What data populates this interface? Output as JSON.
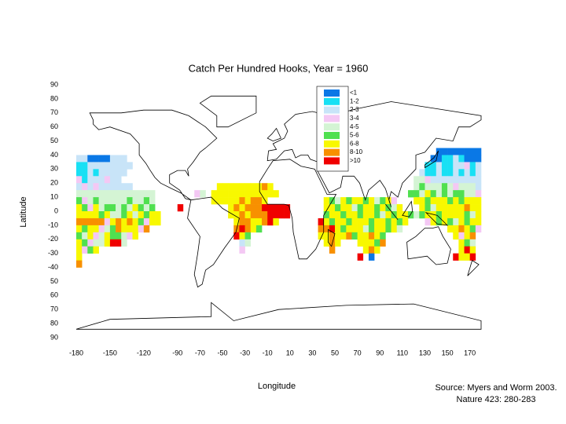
{
  "chart_data": {
    "type": "map",
    "title": "Catch Per Hundred Hooks, Year = 1960",
    "xlabel": "Longitude",
    "ylabel": "Latitude",
    "source": [
      "Source: Myers and Worm 2003.",
      "Nature 423: 280-283"
    ],
    "xlim": [
      -180,
      180
    ],
    "ylim": [
      -90,
      90
    ],
    "xticks": [
      -180,
      -150,
      -120,
      -90,
      -70,
      -50,
      -30,
      -10,
      10,
      30,
      50,
      70,
      90,
      110,
      130,
      150,
      170
    ],
    "yticks": [
      90,
      80,
      70,
      60,
      50,
      40,
      30,
      20,
      10,
      0,
      -10,
      -20,
      -30,
      -40,
      {
        "value": -50,
        "label": "50"
      },
      {
        "value": -60,
        "label": "60"
      },
      {
        "value": -70,
        "label": "70"
      },
      {
        "value": -80,
        "label": "80"
      },
      {
        "value": -90,
        "label": "90"
      }
    ],
    "legend": {
      "labels": [
        "<1",
        "1-2",
        "2-3",
        "3-4",
        "4-5",
        "5-6",
        "6-8",
        "8-10",
        ">10"
      ],
      "colors": [
        "#0a78e6",
        "#18e0f4",
        "#c8e4f8",
        "#f4c8f4",
        "#d4f4d4",
        "#50e050",
        "#f8f800",
        "#f89000",
        "#f00000"
      ]
    },
    "cell_size": 5,
    "cells": [
      {
        "lat": 37.5,
        "lon": -180,
        "classes": [
          2,
          2,
          0,
          0,
          0,
          0,
          2,
          2,
          2
        ]
      },
      {
        "lat": 32.5,
        "lon": -180,
        "classes": [
          1,
          1,
          2,
          2,
          2,
          2,
          2,
          2,
          2,
          2
        ]
      },
      {
        "lat": 27.5,
        "lon": -180,
        "classes": [
          1,
          1,
          2,
          1,
          2,
          2,
          2,
          2,
          2
        ]
      },
      {
        "lat": 22.5,
        "lon": -180,
        "classes": [
          3,
          1,
          2,
          2,
          2,
          3,
          2,
          2
        ]
      },
      {
        "lat": 17.5,
        "lon": -180,
        "classes": [
          2,
          3,
          2,
          3,
          2,
          2,
          2,
          2,
          2,
          2
        ]
      },
      {
        "lat": 12.5,
        "lon": -180,
        "classes": [
          4,
          4,
          4,
          4,
          4,
          4,
          4,
          4,
          4,
          4,
          4,
          4,
          4,
          4
        ]
      },
      {
        "lat": 7.5,
        "lon": -180,
        "classes": [
          5,
          3,
          4,
          5,
          4,
          4,
          4,
          4,
          4,
          5,
          4,
          4,
          5,
          4
        ]
      },
      {
        "lat": 2.5,
        "lon": -180,
        "classes": [
          6,
          5,
          3,
          6,
          4,
          5,
          5,
          4,
          5,
          4,
          6,
          5,
          4,
          5
        ]
      },
      {
        "lat": -2.5,
        "lon": -180,
        "classes": [
          6,
          6,
          6,
          6,
          5,
          6,
          4,
          4,
          5,
          6,
          4,
          6,
          5,
          6,
          6
        ]
      },
      {
        "lat": -7.5,
        "lon": -180,
        "classes": [
          7,
          7,
          7,
          7,
          7,
          3,
          6,
          7,
          6,
          7,
          6,
          5,
          3,
          6,
          6
        ]
      },
      {
        "lat": -12.5,
        "lon": -180,
        "classes": [
          6,
          5,
          6,
          6,
          3,
          4,
          5,
          7,
          6,
          6,
          6,
          3,
          7
        ]
      },
      {
        "lat": -17.5,
        "lon": -180,
        "classes": [
          5,
          4,
          6,
          3,
          4,
          6,
          5,
          5,
          4,
          3,
          6
        ]
      },
      {
        "lat": -22.5,
        "lon": -180,
        "classes": [
          6,
          5,
          3,
          4,
          4,
          6,
          8,
          8,
          4
        ]
      },
      {
        "lat": -27.5,
        "lon": -180,
        "classes": [
          6,
          3,
          5,
          6
        ]
      },
      {
        "lat": -32.5,
        "lon": -180,
        "classes": [
          6
        ]
      },
      {
        "lat": -37.5,
        "lon": -180,
        "classes": [
          7
        ]
      },
      {
        "lat": 17.5,
        "lon": -55,
        "classes": [
          6,
          6,
          6,
          6,
          6,
          6,
          6,
          6,
          7,
          6
        ]
      },
      {
        "lat": 12.5,
        "lon": -75,
        "classes": [
          3,
          4,
          null,
          6,
          6,
          6,
          6,
          6,
          6,
          6,
          6,
          6,
          6,
          6,
          6
        ]
      },
      {
        "lat": 7.5,
        "lon": -60,
        "classes": [
          6,
          6,
          6,
          6,
          6,
          7,
          6,
          7,
          7,
          6
        ]
      },
      {
        "lat": 2.5,
        "lon": -90,
        "classes": [
          8,
          null,
          null,
          null,
          null,
          null,
          null,
          null,
          null,
          6,
          7,
          6,
          7,
          7,
          7,
          8,
          8,
          8,
          8,
          8
        ]
      },
      {
        "lat": -2.5,
        "lon": -45,
        "classes": [
          6,
          6,
          7,
          6,
          7,
          7,
          7,
          8,
          8,
          8,
          8
        ]
      },
      {
        "lat": -7.5,
        "lon": -40,
        "classes": [
          6,
          7,
          7,
          6,
          6,
          7,
          8,
          6
        ]
      },
      {
        "lat": -12.5,
        "lon": -40,
        "classes": [
          7,
          8,
          7,
          6,
          5
        ]
      },
      {
        "lat": -17.5,
        "lon": -40,
        "classes": [
          8,
          6,
          5
        ]
      },
      {
        "lat": -22.5,
        "lon": -35,
        "classes": [
          2,
          4
        ]
      },
      {
        "lat": -27.5,
        "lon": -35,
        "classes": [
          3
        ]
      },
      {
        "lat": 7.5,
        "lon": 40,
        "classes": [
          6,
          5,
          4,
          6,
          5,
          6,
          6,
          5,
          6,
          4,
          5,
          6,
          3
        ]
      },
      {
        "lat": 2.5,
        "lon": 40,
        "classes": [
          6,
          6,
          5,
          6,
          6,
          4,
          5,
          6,
          6,
          5,
          6,
          5,
          4,
          6
        ]
      },
      {
        "lat": -2.5,
        "lon": 40,
        "classes": [
          5,
          6,
          6,
          5,
          6,
          6,
          5,
          6,
          6,
          5,
          4,
          6,
          5,
          6,
          6,
          5,
          4
        ]
      },
      {
        "lat": -7.5,
        "lon": 35,
        "classes": [
          8,
          6,
          5,
          6,
          6,
          5,
          6,
          6,
          6,
          5,
          6,
          6,
          5,
          6,
          5,
          6
        ]
      },
      {
        "lat": -12.5,
        "lon": 35,
        "classes": [
          7,
          7,
          8,
          6,
          5,
          6,
          6,
          6,
          4,
          5,
          6,
          6,
          5,
          6,
          4
        ]
      },
      {
        "lat": -17.5,
        "lon": 35,
        "classes": [
          6,
          6,
          7,
          6,
          6,
          7,
          5,
          6,
          6,
          7,
          6,
          5
        ]
      },
      {
        "lat": -22.5,
        "lon": 40,
        "classes": [
          6,
          7,
          6,
          null,
          null,
          null,
          6,
          6,
          6,
          5,
          7
        ]
      },
      {
        "lat": -27.5,
        "lon": 45,
        "classes": [
          7,
          null,
          null,
          null,
          null,
          null,
          6,
          7,
          6
        ]
      },
      {
        "lat": -32.5,
        "lon": 70,
        "classes": [
          8,
          null,
          0
        ]
      },
      {
        "lat": 42.5,
        "lon": 140,
        "classes": [
          0,
          0,
          0,
          0,
          0,
          0,
          0,
          0
        ]
      },
      {
        "lat": 37.5,
        "lon": 135,
        "classes": [
          0,
          0,
          1,
          1,
          2,
          1,
          0,
          0,
          0
        ]
      },
      {
        "lat": 32.5,
        "lon": 130,
        "classes": [
          1,
          1,
          2,
          1,
          1,
          2,
          2,
          3,
          1,
          2
        ]
      },
      {
        "lat": 27.5,
        "lon": 125,
        "classes": [
          2,
          1,
          1,
          2,
          1,
          1,
          2,
          1,
          2,
          1,
          2
        ]
      },
      {
        "lat": 22.5,
        "lon": 120,
        "classes": [
          4,
          4,
          3,
          2,
          2,
          2,
          2,
          2,
          2,
          2,
          2,
          2
        ]
      },
      {
        "lat": 17.5,
        "lon": 120,
        "classes": [
          4,
          5,
          4,
          4,
          4,
          5,
          4,
          3,
          4,
          4,
          4,
          2
        ]
      },
      {
        "lat": 12.5,
        "lon": 115,
        "classes": [
          5,
          5,
          4,
          6,
          5,
          4,
          5,
          4,
          5,
          5,
          4,
          4,
          3
        ]
      },
      {
        "lat": 7.5,
        "lon": 120,
        "classes": [
          6,
          6,
          5,
          6,
          6,
          6,
          5,
          6,
          5,
          6,
          6,
          6
        ]
      },
      {
        "lat": 2.5,
        "lon": 125,
        "classes": [
          6,
          5,
          4,
          6,
          6,
          6,
          6,
          6,
          7,
          6,
          6
        ]
      },
      {
        "lat": -2.5,
        "lon": 125,
        "classes": [
          5,
          6,
          6,
          5,
          6,
          6,
          6,
          6,
          5,
          4,
          6
        ]
      },
      {
        "lat": -7.5,
        "lon": 130,
        "classes": [
          3,
          6,
          5,
          6,
          5,
          4,
          6,
          5,
          6,
          6
        ]
      },
      {
        "lat": -12.5,
        "lon": 150,
        "classes": [
          6,
          6,
          7,
          6,
          5,
          3
        ]
      },
      {
        "lat": -17.5,
        "lon": 155,
        "classes": [
          6,
          3,
          6,
          7
        ]
      },
      {
        "lat": -22.5,
        "lon": 160,
        "classes": [
          6,
          5,
          4
        ]
      },
      {
        "lat": -27.5,
        "lon": 160,
        "classes": [
          6,
          8,
          6
        ]
      },
      {
        "lat": -32.5,
        "lon": 155,
        "classes": [
          8,
          6,
          6,
          8
        ]
      }
    ]
  }
}
